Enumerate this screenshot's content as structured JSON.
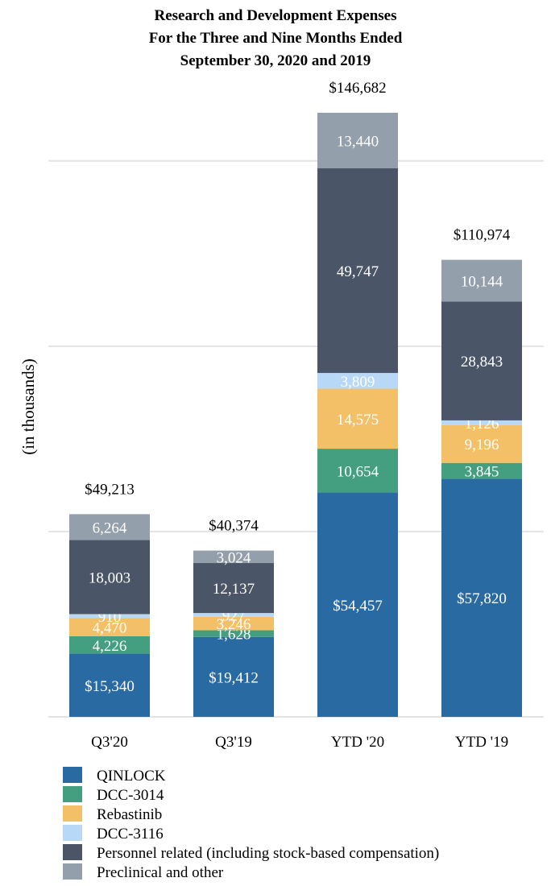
{
  "chart_data": {
    "type": "bar",
    "stacked": true,
    "title": [
      "Research and Development Expenses",
      "For the Three and Nine Months Ended",
      "September 30, 2020 and 2019"
    ],
    "ylabel": "(in thousands)",
    "xlabel": "",
    "ylim": [
      0,
      160000
    ],
    "grid": true,
    "legend_position": "bottom-left",
    "categories": [
      "Q3'20",
      "Q3'19",
      "YTD '20",
      "YTD '19"
    ],
    "totals": [
      "$49,213",
      "$40,374",
      "$146,682",
      "$110,974"
    ],
    "total_values": [
      49213,
      40374,
      146682,
      110974
    ],
    "series": [
      {
        "name": "QINLOCK",
        "color": "#2a6aa3",
        "values": [
          15340,
          19412,
          54457,
          57820
        ],
        "labels": [
          "$15,340",
          "$19,412",
          "$54,457",
          "$57,820"
        ]
      },
      {
        "name": "DCC-3014",
        "color": "#449f80",
        "values": [
          4226,
          1628,
          10654,
          3845
        ],
        "labels": [
          "4,226",
          "1,628",
          "10,654",
          "3,845"
        ]
      },
      {
        "name": "Rebastinib",
        "color": "#f3c067",
        "values": [
          4470,
          3246,
          14575,
          9196
        ],
        "labels": [
          "4,470",
          "3,246",
          "14,575",
          "9,196"
        ]
      },
      {
        "name": "DCC-3116",
        "color": "#b8d8f7",
        "values": [
          910,
          927,
          3809,
          1126
        ],
        "labels": [
          "910",
          "927",
          "3,809",
          "1,126"
        ]
      },
      {
        "name": "Personnel related (including stock-based compensation)",
        "color": "#4a5668",
        "values": [
          18003,
          12137,
          49747,
          28843
        ],
        "labels": [
          "18,003",
          "12,137",
          "49,747",
          "28,843"
        ]
      },
      {
        "name": "Preclinical and other",
        "color": "#939fab",
        "values": [
          6264,
          3024,
          13440,
          10144
        ],
        "labels": [
          "6,264",
          "3,024",
          "13,440",
          "10,144"
        ]
      }
    ]
  }
}
